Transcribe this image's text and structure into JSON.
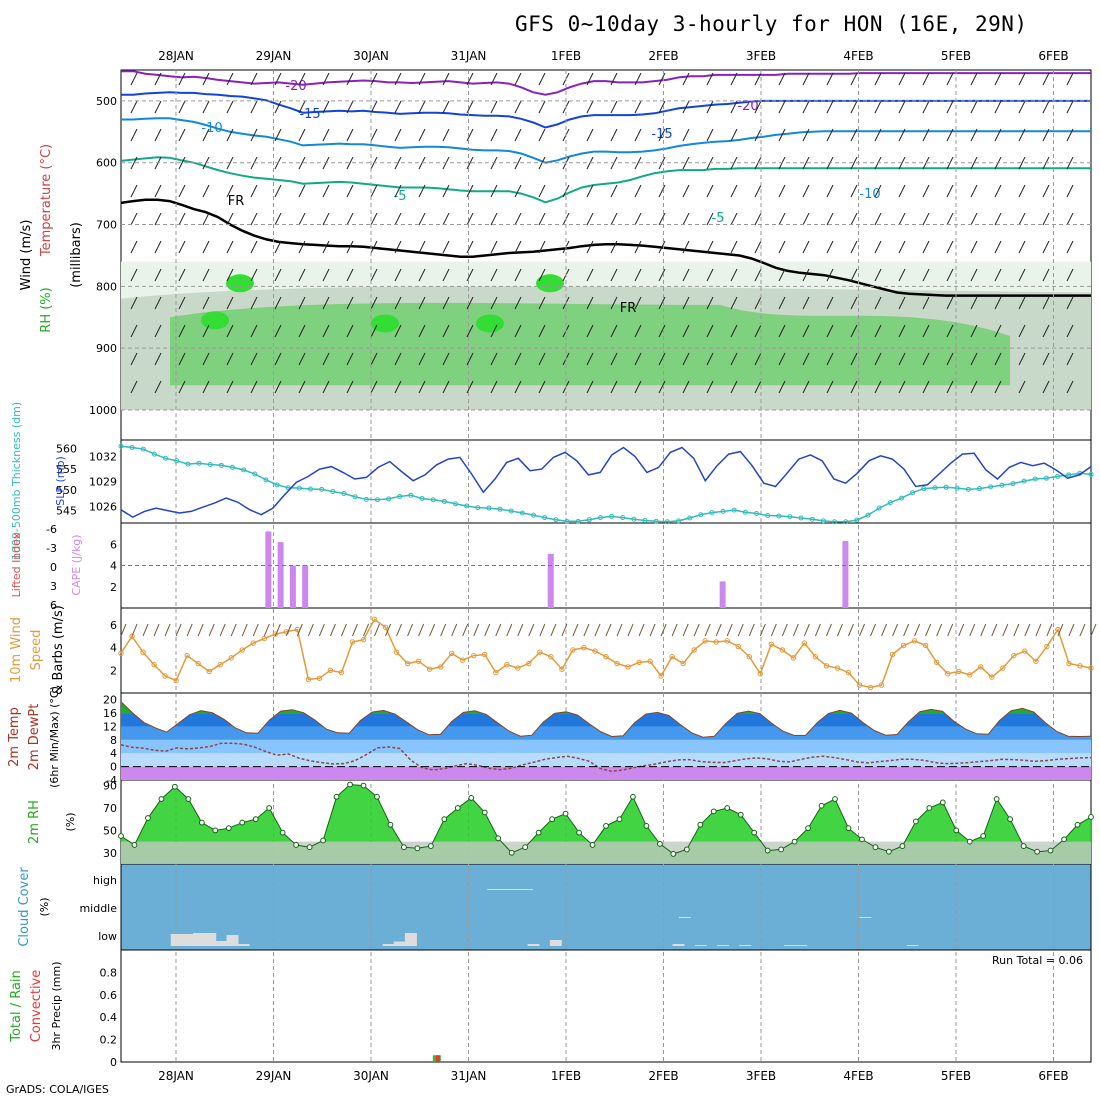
{
  "title": "GFS 0~10day 3-hourly for HON (16E, 29N)",
  "credit": "GrADS: COLA/IGES",
  "colors": {
    "grid": "#9a9a9a",
    "wind_barb": "#222222",
    "rh_light": "#eaf3ea",
    "rh_mid": "#c9d9c9",
    "rh_green": "#66cc66",
    "rh_bright": "#33dd33",
    "freezing": "#000000",
    "cape": "#cc88ee",
    "lifted_index_zero": "#e05050",
    "slp": "#2244cc",
    "thickness": "#33bbbb",
    "wind10m": "#e39b3a",
    "barb10m": "#7a5a3a",
    "temp_band_dark": "#2277dd",
    "temp_band_mid": "#4499ee",
    "temp_band_light": "#88c4ff",
    "temp_band_pale": "#b8dcff",
    "temp_top_green": "#22aa33",
    "temp_below_zero": "#cc88ee",
    "dewpoint": "#8a4a3a",
    "rh2m_green": "#22cc22",
    "rh2m_grey": "#c0c8c0",
    "cloud_bg": "#6baed6",
    "cloud_fill": "#dddddd",
    "precip_total": "#33bb33",
    "precip_conv": "#ee3333"
  },
  "dates": [
    "28JAN",
    "29JAN",
    "30JAN",
    "31JAN",
    "1FEB",
    "2FEB",
    "3FEB",
    "4FEB",
    "5FEB",
    "6FEB"
  ],
  "panels": [
    {
      "id": "upper-air",
      "left": "Wind (m/s)",
      "left_tem": "Temperature (°C)",
      "left_rh": "RH (%)",
      "right": "(millibars)",
      "ticks": [
        "500",
        "600",
        "700",
        "800",
        "900",
        "1000"
      ]
    },
    {
      "id": "thickness-slp",
      "left": "1000-500mb Thickness (dm)",
      "right": "SLP (mb)",
      "ticks_left": [
        "560",
        "555",
        "550",
        "545"
      ],
      "ticks_right": [
        "1032",
        "1029",
        "1026"
      ]
    },
    {
      "id": "cape-li",
      "left": "Lifted Index",
      "right": "CAPE (J/kg)",
      "ticks_left": [
        "-6",
        "-3",
        "0",
        "3",
        "6"
      ],
      "ticks_right": [
        "6",
        "4",
        "2"
      ]
    },
    {
      "id": "wind10m",
      "left": "10m Wind",
      "left2": "Speed",
      "right": "& Barbs (m/s)",
      "ticks": [
        "6",
        "4",
        "2"
      ]
    },
    {
      "id": "temp2m",
      "left": "2m Temp",
      "left2": "2m DewPt",
      "right": "(6hr Min/Max) (°C)",
      "ticks": [
        "20",
        "16",
        "12",
        "8",
        "4",
        "0",
        "-4"
      ]
    },
    {
      "id": "rh2m",
      "left": "2m RH",
      "right": "(%)",
      "ticks": [
        "90",
        "70",
        "50",
        "30"
      ]
    },
    {
      "id": "cloud",
      "left": "Cloud Cover",
      "right": "(%)",
      "ticks": [
        "high",
        "middle",
        "low"
      ]
    },
    {
      "id": "precip",
      "left": "Total / Rain",
      "left2": "Convective",
      "right": "3hr Precip (mm)",
      "ticks": [
        "0.8",
        "0.6",
        "0.4",
        "0.2",
        "0"
      ],
      "run_total": "Run Total = 0.06"
    }
  ],
  "contour_labels": [
    "-20",
    "-15",
    "-10",
    "-5",
    "FR",
    "-20",
    "-15",
    "-10",
    "-5",
    "FR"
  ],
  "chart_data": {
    "type": "meteogram",
    "title": "GFS 0~10day 3-hourly for HON (16E, 29N)",
    "x_start": "2025-01-27T12:00Z",
    "x_step_hours": 3,
    "pressure_contours": {
      "temperature_levels_C": [
        -20,
        -15,
        -10,
        -5
      ],
      "ylim_mb": [
        1000,
        450
      ],
      "t_minus20_mb": [
        452,
        452,
        456,
        458,
        460,
        462,
        461,
        463,
        466,
        468,
        470,
        472,
        471,
        470,
        472,
        474,
        472,
        470,
        469,
        468,
        467,
        468,
        470,
        470,
        471,
        470,
        469,
        468,
        470,
        472,
        471,
        470,
        472,
        478,
        486,
        490,
        486,
        478,
        472,
        468,
        468,
        470,
        470,
        470,
        468,
        466,
        462,
        460,
        460,
        458,
        458,
        458,
        458,
        458,
        458,
        456,
        456,
        456,
        456,
        456,
        456,
        455,
        455,
        455,
        455,
        455,
        455,
        455,
        455,
        455,
        455,
        455,
        455,
        455,
        455,
        455,
        455,
        455,
        455,
        455,
        455
      ],
      "t_minus15_mb": [
        490,
        490,
        488,
        487,
        486,
        487,
        487,
        489,
        490,
        492,
        493,
        496,
        499,
        506,
        512,
        519,
        518,
        517,
        516,
        517,
        516,
        518,
        519,
        521,
        520,
        519,
        519,
        520,
        522,
        523,
        524,
        524,
        525,
        529,
        535,
        543,
        538,
        530,
        525,
        523,
        523,
        523,
        523,
        522,
        520,
        516,
        512,
        510,
        508,
        506,
        505,
        503,
        501,
        500,
        500,
        500,
        500,
        500,
        500,
        500,
        500,
        500,
        500,
        500,
        500,
        500,
        500,
        500,
        500,
        500,
        500,
        500,
        500,
        500,
        500,
        500,
        500,
        500,
        500,
        500,
        500
      ],
      "t_minus10_mb": [
        530,
        530,
        529,
        528,
        528,
        531,
        534,
        539,
        545,
        550,
        553,
        556,
        558,
        562,
        566,
        572,
        571,
        570,
        569,
        570,
        570,
        572,
        574,
        576,
        575,
        574,
        574,
        575,
        577,
        579,
        580,
        580,
        581,
        585,
        592,
        600,
        596,
        590,
        585,
        582,
        582,
        583,
        583,
        582,
        580,
        577,
        573,
        570,
        568,
        566,
        565,
        563,
        560,
        558,
        555,
        553,
        551,
        550,
        549,
        549,
        549,
        549,
        549,
        549,
        549,
        549,
        549,
        549,
        549,
        549,
        549,
        549,
        549,
        549,
        549,
        549,
        549,
        549,
        549,
        549,
        549
      ],
      "t_minus5_mb": [
        597,
        595,
        593,
        591,
        592,
        596,
        600,
        606,
        612,
        617,
        621,
        624,
        626,
        628,
        630,
        634,
        633,
        632,
        631,
        632,
        634,
        636,
        638,
        640,
        640,
        640,
        641,
        643,
        645,
        646,
        646,
        646,
        646,
        650,
        656,
        664,
        658,
        648,
        640,
        636,
        634,
        632,
        628,
        622,
        617,
        614,
        612,
        612,
        612,
        610,
        610,
        609,
        609,
        609,
        609,
        609,
        609,
        609,
        609,
        609,
        609,
        609,
        609,
        609,
        609,
        609,
        609,
        609,
        609,
        609,
        609,
        609,
        609,
        609,
        609,
        609,
        609,
        609,
        609,
        609,
        609
      ],
      "freezing_level_mb": [
        665,
        662,
        660,
        660,
        662,
        668,
        675,
        680,
        688,
        700,
        710,
        718,
        724,
        728,
        730,
        732,
        733,
        734,
        735,
        735,
        736,
        738,
        740,
        742,
        744,
        746,
        748,
        750,
        752,
        752,
        750,
        748,
        746,
        745,
        744,
        742,
        740,
        738,
        735,
        733,
        732,
        732,
        733,
        734,
        736,
        738,
        740,
        742,
        744,
        746,
        748,
        750,
        755,
        762,
        770,
        775,
        778,
        780,
        782,
        786,
        790,
        795,
        800,
        805,
        810,
        812,
        813,
        814,
        815,
        815,
        815,
        815,
        815,
        815,
        815,
        815,
        815,
        815,
        815,
        815,
        815
      ]
    },
    "thickness_dm": [
      560.5,
      560.2,
      559.8,
      558.6,
      557.6,
      557,
      556.2,
      556.4,
      556.1,
      555.9,
      555.4,
      554.8,
      553.8,
      552.4,
      551.2,
      550.5,
      550.4,
      550.2,
      550.1,
      549.6,
      549.1,
      548.3,
      547.7,
      547.6,
      547.8,
      548.4,
      548.7,
      547.9,
      547.6,
      547.2,
      546.6,
      546.1,
      545.7,
      545.6,
      545.3,
      544.9,
      544.4,
      543.9,
      543.3,
      542.8,
      542.4,
      542.4,
      542.8,
      543.3,
      543.6,
      543.3,
      542.9,
      542.6,
      542.4,
      542.3,
      542.5,
      543.2,
      544,
      544.5,
      544.8,
      545.1,
      544.6,
      544.3,
      543.8,
      543.7,
      543.5,
      543.2,
      542.9,
      542.5,
      542.3,
      542.3,
      542.7,
      543.9,
      545.6,
      546.9,
      548,
      549.3,
      550.3,
      550.5,
      550.6,
      550.4,
      550.1,
      550.3,
      550.7,
      551.1,
      551.5,
      552.1,
      552.6,
      552.8,
      553.2,
      553.6,
      554,
      553.7
    ],
    "slp_mb": [
      1025.6,
      1024.7,
      1025.4,
      1025.8,
      1025.5,
      1025.2,
      1025.4,
      1025.9,
      1026.4,
      1027,
      1026.5,
      1025.6,
      1025,
      1025.8,
      1027.4,
      1028.9,
      1029.6,
      1030.5,
      1030.8,
      1030.1,
      1029.3,
      1029.5,
      1030.7,
      1031.4,
      1030.2,
      1029.1,
      1029.8,
      1031,
      1031.7,
      1031.9,
      1029.9,
      1027.7,
      1029.3,
      1031.3,
      1031.8,
      1030.3,
      1030.5,
      1031.9,
      1032.5,
      1031.5,
      1029.8,
      1030.1,
      1032.2,
      1033.1,
      1032,
      1030.1,
      1030.7,
      1032.5,
      1033.1,
      1031.8,
      1029.1,
      1030.9,
      1032.3,
      1032.6,
      1030.9,
      1028.8,
      1028.4,
      1030,
      1031.7,
      1032.2,
      1031.5,
      1029.3,
      1028.8,
      1030,
      1031.5,
      1032.1,
      1031.7,
      1030.5,
      1028.4,
      1028.6,
      1029.9,
      1031.2,
      1032.3,
      1032.4,
      1030.4,
      1029.3,
      1030.7,
      1031.3,
      1030.9,
      1031.2,
      1030.4,
      1029.4,
      1029.8,
      1030.8
    ],
    "cape_jkg": [
      0,
      0,
      0,
      0,
      0,
      0,
      0,
      0,
      0,
      0,
      0,
      0,
      7.2,
      6.2,
      4,
      4,
      0,
      0,
      0,
      0,
      0,
      0,
      0,
      0,
      0,
      0,
      0,
      0,
      0,
      0,
      0,
      0,
      0,
      0,
      0,
      5.1,
      0,
      0,
      0,
      0,
      0,
      0,
      0,
      0,
      0,
      0,
      0,
      0,
      0,
      2.5,
      0,
      0,
      0,
      0,
      0,
      0,
      0,
      0,
      0,
      6.3,
      0,
      0,
      0,
      0,
      0,
      0,
      0,
      0,
      0,
      0,
      0,
      0,
      0,
      0,
      0,
      0,
      0,
      0,
      0,
      0
    ],
    "lifted_index_zero": 0,
    "wind10m_ms": [
      3.5,
      5,
      3.6,
      2.5,
      1.5,
      1.1,
      3.3,
      2.6,
      1.9,
      2.5,
      3.1,
      3.8,
      4.4,
      4.8,
      5.2,
      5.4,
      5.6,
      1.2,
      1.3,
      2,
      1.8,
      4.5,
      4.7,
      6.5,
      5.8,
      3.6,
      2.6,
      2.8,
      2.1,
      2.3,
      3.5,
      2.9,
      3.3,
      3.4,
      1.8,
      2.5,
      2.2,
      2.6,
      3.6,
      3.2,
      2.1,
      3.8,
      4,
      3.7,
      3.2,
      2.6,
      2.3,
      2.7,
      2.8,
      1.5,
      3.2,
      2.6,
      3.8,
      4.6,
      4.5,
      4.6,
      4.1,
      3.2,
      1.7,
      4.3,
      3.8,
      3.1,
      4.4,
      3.2,
      2.4,
      2.2,
      1.8,
      0.7,
      0.5,
      0.7,
      3.4,
      4.2,
      4.6,
      4.2,
      2.7,
      1.7,
      1.9,
      1.6,
      2.3,
      1.4,
      2.2,
      3.3,
      3.7,
      2.8,
      4.1,
      5.6,
      2.6,
      2.4,
      2.2
    ],
    "temp2m_C": [
      19.4,
      16.1,
      13.2,
      11.6,
      10.3,
      12.9,
      15.5,
      16.7,
      16.1,
      14.2,
      11.6,
      10.1,
      10,
      13.9,
      16.6,
      17,
      16.1,
      13.9,
      11.2,
      10.1,
      10,
      13.8,
      16.3,
      16.8,
      15.7,
      13.4,
      11,
      9.5,
      9.7,
      13.5,
      16.2,
      16.7,
      15.6,
      13.1,
      10.6,
      9.1,
      9.4,
      13.3,
      15.9,
      16.4,
      15.4,
      12.9,
      10.5,
      9,
      9.2,
      13.1,
      15.7,
      16.2,
      15.3,
      12.6,
      10.1,
      8.8,
      9.1,
      12.9,
      15.9,
      16.6,
      15.8,
      13,
      10.6,
      9.3,
      9.4,
      13.1,
      15.9,
      16.8,
      16,
      13.2,
      10.8,
      9.4,
      9.6,
      13.4,
      16.4,
      17.1,
      16.5,
      13.5,
      11.2,
      9.8,
      9.7,
      13.8,
      16.7,
      17.4,
      16.3,
      13.1,
      10.5,
      9.1,
      9,
      9.1
    ],
    "dewpoint2m_C": [
      6.5,
      5.8,
      5.5,
      4.9,
      4.6,
      5.6,
      5.3,
      5.6,
      6,
      7,
      7,
      6.7,
      5.8,
      4.5,
      3.4,
      3.8,
      2.5,
      1.7,
      1.2,
      0.8,
      0.9,
      1.8,
      3.6,
      5.6,
      5.9,
      5.4,
      1.9,
      -0.3,
      -1,
      -0.6,
      0.2,
      0.9,
      0.4,
      -0.5,
      -0.9,
      -0.5,
      0.5,
      1.3,
      2.2,
      2.7,
      3.1,
      2.5,
      1.6,
      -0.6,
      -1.4,
      -1,
      -0.3,
      0.3,
      0.8,
      1.5,
      2,
      2.1,
      1.5,
      1.3,
      1.2,
      1.7,
      2.3,
      2.6,
      2.3,
      1.6,
      1.4,
      2.2,
      2.8,
      3.1,
      2.7,
      2.1,
      1.4,
      1.1,
      1.5,
      1.8,
      2.2,
      2.2,
      1.9,
      1.2,
      0.9,
      1,
      1.2,
      1.5,
      1.8,
      2.2,
      2.1,
      1.9,
      1.6,
      1.8,
      2.2,
      2.4,
      2.6,
      2.7
    ],
    "rh2m_pct": [
      45,
      37,
      61,
      78,
      89,
      78,
      57,
      50,
      52,
      57,
      60,
      70,
      48,
      37,
      35,
      41,
      80,
      91,
      90,
      80,
      55,
      35,
      34,
      36,
      60,
      70,
      79,
      66,
      43,
      30,
      35,
      48,
      60,
      65,
      48,
      37,
      54,
      60,
      80,
      54,
      38,
      29,
      33,
      55,
      67,
      70,
      64,
      48,
      32,
      33,
      40,
      52,
      72,
      78,
      52,
      42,
      35,
      31,
      36,
      58,
      70,
      75,
      50,
      40,
      45,
      78,
      60,
      36,
      31,
      32,
      42,
      55,
      62
    ],
    "cloud_low_pct": [
      0,
      0,
      0,
      0,
      0,
      48,
      48,
      52,
      52,
      20,
      44,
      8,
      0,
      0,
      0,
      0,
      0,
      0,
      0,
      0,
      0,
      0,
      0,
      0,
      8,
      18,
      52,
      0,
      0,
      0,
      0,
      0,
      0,
      0,
      0,
      0,
      0,
      8,
      0,
      24,
      0,
      0,
      0,
      0,
      0,
      0,
      0,
      0,
      0,
      0,
      8,
      0,
      4,
      0,
      4,
      0,
      4,
      0,
      0,
      0,
      4,
      4,
      0,
      0,
      0,
      0,
      0,
      0,
      0,
      0,
      0,
      4,
      0,
      0,
      0,
      0,
      0,
      0,
      0,
      0,
      0,
      0,
      0,
      0,
      0,
      0,
      0,
      0
    ],
    "cloud_mid_pct": [
      0,
      0,
      0,
      0,
      0,
      0,
      0,
      0,
      0,
      0,
      0,
      0,
      0,
      0,
      0,
      0,
      0,
      0,
      0,
      0,
      0,
      0,
      0,
      0,
      0,
      0,
      0,
      0,
      0,
      0,
      0,
      0,
      0,
      0,
      0,
      0,
      0,
      0,
      0,
      0,
      0,
      0,
      0,
      0,
      0,
      0,
      0,
      0,
      0,
      0,
      4,
      0,
      0,
      0,
      0,
      0,
      0,
      0,
      0,
      0,
      0,
      0,
      0,
      0,
      0,
      0,
      4,
      0,
      0,
      0,
      0,
      0,
      0,
      0,
      0,
      0,
      0,
      0,
      0,
      0,
      0,
      0,
      0,
      0,
      0,
      0,
      0
    ],
    "cloud_high_pct": [
      0,
      0,
      0,
      0,
      0,
      0,
      0,
      0,
      0,
      0,
      0,
      0,
      0,
      0,
      0,
      0,
      0,
      0,
      0,
      0,
      0,
      0,
      0,
      0,
      0,
      0,
      0,
      0,
      0,
      0,
      0,
      0,
      0,
      4,
      4,
      4,
      4,
      0,
      0,
      0,
      0,
      0,
      0,
      0,
      0,
      0,
      0,
      0,
      0,
      0,
      0,
      0,
      0,
      0,
      0,
      0,
      0,
      0,
      0,
      0,
      0,
      0,
      0,
      0,
      0,
      0,
      0,
      0,
      0,
      0,
      0,
      0,
      0,
      0,
      0,
      0,
      0,
      0,
      0,
      0,
      0,
      0,
      0,
      0,
      0,
      0,
      0
    ],
    "precip3h_total_mm": [
      0,
      0,
      0,
      0,
      0,
      0,
      0,
      0,
      0,
      0,
      0,
      0,
      0,
      0,
      0,
      0,
      0,
      0,
      0,
      0,
      0,
      0,
      0,
      0,
      0,
      0,
      0,
      0,
      0.06,
      0,
      0,
      0,
      0,
      0,
      0,
      0,
      0,
      0,
      0,
      0,
      0,
      0,
      0,
      0,
      0,
      0,
      0,
      0,
      0,
      0,
      0,
      0,
      0,
      0,
      0,
      0,
      0,
      0,
      0,
      0,
      0,
      0,
      0,
      0,
      0,
      0,
      0,
      0,
      0,
      0,
      0,
      0,
      0,
      0,
      0,
      0,
      0,
      0,
      0,
      0,
      0,
      0,
      0,
      0,
      0,
      0,
      0
    ],
    "precip3h_conv_mm": [
      0,
      0,
      0,
      0,
      0,
      0,
      0,
      0,
      0,
      0,
      0,
      0,
      0,
      0,
      0,
      0,
      0,
      0,
      0,
      0,
      0,
      0,
      0,
      0,
      0,
      0,
      0,
      0,
      0.06,
      0,
      0,
      0,
      0,
      0,
      0,
      0,
      0,
      0,
      0,
      0,
      0,
      0,
      0,
      0,
      0,
      0,
      0,
      0,
      0,
      0,
      0,
      0,
      0,
      0,
      0,
      0,
      0,
      0,
      0,
      0,
      0,
      0,
      0,
      0,
      0,
      0,
      0,
      0,
      0,
      0,
      0,
      0,
      0,
      0,
      0,
      0,
      0,
      0,
      0,
      0,
      0,
      0,
      0,
      0,
      0,
      0,
      0
    ],
    "precip_run_total": "Run Total = 0.06"
  }
}
